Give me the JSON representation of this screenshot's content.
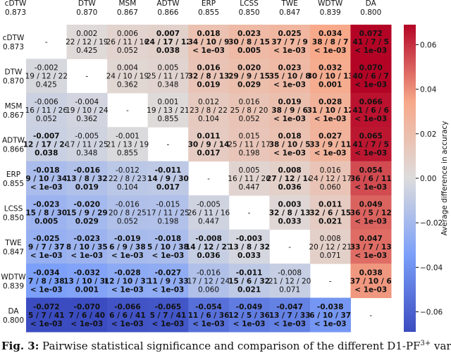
{
  "chart_data": {
    "type": "heatmap",
    "colorbar_label": "Average difference in accuracy",
    "zlim": [
      -0.069,
      0.069
    ],
    "zticks": [
      {
        "value": -0.06,
        "label": "−0.06"
      },
      {
        "value": -0.04,
        "label": "−0.04"
      },
      {
        "value": -0.02,
        "label": "−0.02"
      },
      {
        "value": 0,
        "label": "0.00"
      },
      {
        "value": 0.02,
        "label": "0.02"
      },
      {
        "value": 0.04,
        "label": "0.04"
      },
      {
        "value": 0.06,
        "label": "0.06"
      }
    ],
    "colormap": [
      "#3b4cc0",
      "#7b9ff9",
      "#dddcdc",
      "#f7a889",
      "#b40426"
    ],
    "methods": [
      {
        "name": "cDTW",
        "acc": "0.873"
      },
      {
        "name": "DTW",
        "acc": "0.870"
      },
      {
        "name": "MSM",
        "acc": "0.867"
      },
      {
        "name": "ADTW",
        "acc": "0.866"
      },
      {
        "name": "ERP",
        "acc": "0.855"
      },
      {
        "name": "LCSS",
        "acc": "0.850"
      },
      {
        "name": "TWE",
        "acc": "0.847"
      },
      {
        "name": "WDTW",
        "acc": "0.839"
      },
      {
        "name": "DA",
        "acc": "0.800"
      }
    ],
    "matrix": [
      [
        {
          "diff": "-"
        },
        {
          "value": 0.002,
          "diff": "0.002",
          "wtl": "22 / 12 / 19",
          "p": "0.425",
          "bold": false
        },
        {
          "value": 0.006,
          "diff": "0.006",
          "wtl": "26 / 11 / 16",
          "p": "0.052",
          "bold": false
        },
        {
          "value": 0.007,
          "diff": "0.007",
          "wtl": "24 / 17 / 12",
          "p": "0.038",
          "bold": true
        },
        {
          "value": 0.018,
          "diff": "0.018",
          "wtl": "34 / 10 / 9",
          "p": "< 1e-03",
          "bold": true
        },
        {
          "value": 0.023,
          "diff": "0.023",
          "wtl": "30 / 8 / 15",
          "p": "0.005",
          "bold": true
        },
        {
          "value": 0.025,
          "diff": "0.025",
          "wtl": "37 / 7 / 9",
          "p": "< 1e-03",
          "bold": true
        },
        {
          "value": 0.034,
          "diff": "0.034",
          "wtl": "38 / 8 / 7",
          "p": "< 1e-03",
          "bold": true
        },
        {
          "value": 0.072,
          "diff": "0.072",
          "wtl": "41 / 7 / 5",
          "p": "< 1e-03",
          "bold": true
        }
      ],
      [
        {
          "value": -0.002,
          "diff": "-0.002",
          "wtl": "19 / 12 / 22",
          "p": "0.425",
          "bold": false
        },
        {
          "diff": "-"
        },
        {
          "value": 0.004,
          "diff": "0.004",
          "wtl": "24 / 10 / 19",
          "p": "0.362",
          "bold": false
        },
        {
          "value": 0.005,
          "diff": "0.005",
          "wtl": "25 / 11 / 17",
          "p": "0.348",
          "bold": false
        },
        {
          "value": 0.016,
          "diff": "0.016",
          "wtl": "32 / 8 / 13",
          "p": "0.019",
          "bold": true
        },
        {
          "value": 0.02,
          "diff": "0.020",
          "wtl": "29 / 9 / 15",
          "p": "0.029",
          "bold": true
        },
        {
          "value": 0.023,
          "diff": "0.023",
          "wtl": "35 / 10 / 8",
          "p": "< 1e-03",
          "bold": true
        },
        {
          "value": 0.032,
          "diff": "0.032",
          "wtl": "30 / 10 / 13",
          "p": "0.001",
          "bold": true
        },
        {
          "value": 0.07,
          "diff": "0.070",
          "wtl": "40 / 6 / 7",
          "p": "< 1e-03",
          "bold": true
        }
      ],
      [
        {
          "value": -0.006,
          "diff": "-0.006",
          "wtl": "16 / 11 / 26",
          "p": "0.052",
          "bold": false
        },
        {
          "value": -0.004,
          "diff": "-0.004",
          "wtl": "19 / 10 / 24",
          "p": "0.362",
          "bold": false
        },
        {
          "diff": "-"
        },
        {
          "value": 0.001,
          "diff": "0.001",
          "wtl": "19 / 13 / 21",
          "p": "0.855",
          "bold": false
        },
        {
          "value": 0.012,
          "diff": "0.012",
          "wtl": "23 / 8 / 22",
          "p": "0.104",
          "bold": false
        },
        {
          "value": 0.016,
          "diff": "0.016",
          "wtl": "25 / 8 / 20",
          "p": "0.052",
          "bold": false
        },
        {
          "value": 0.019,
          "diff": "0.019",
          "wtl": "38 / 9 / 6",
          "p": "< 1e-03",
          "bold": true
        },
        {
          "value": 0.028,
          "diff": "0.028",
          "wtl": "31 / 10 / 12",
          "p": "< 1e-03",
          "bold": true
        },
        {
          "value": 0.066,
          "diff": "0.066",
          "wtl": "41 / 6 / 6",
          "p": "< 1e-03",
          "bold": true
        }
      ],
      [
        {
          "value": -0.007,
          "diff": "-0.007",
          "wtl": "12 / 17 / 24",
          "p": "0.038",
          "bold": true
        },
        {
          "value": -0.005,
          "diff": "-0.005",
          "wtl": "17 / 11 / 25",
          "p": "0.348",
          "bold": false
        },
        {
          "value": -0.001,
          "diff": "-0.001",
          "wtl": "21 / 13 / 19",
          "p": "0.855",
          "bold": false
        },
        {
          "diff": "-"
        },
        {
          "value": 0.011,
          "diff": "0.011",
          "wtl": "30 / 9 / 14",
          "p": "0.017",
          "bold": true
        },
        {
          "value": 0.015,
          "diff": "0.015",
          "wtl": "25 / 11 / 17",
          "p": "0.198",
          "bold": false
        },
        {
          "value": 0.018,
          "diff": "0.018",
          "wtl": "38 / 10 / 5",
          "p": "< 1e-03",
          "bold": true
        },
        {
          "value": 0.027,
          "diff": "0.027",
          "wtl": "33 / 9 / 11",
          "p": "< 1e-03",
          "bold": true
        },
        {
          "value": 0.065,
          "diff": "0.065",
          "wtl": "41 / 7 / 5",
          "p": "< 1e-03",
          "bold": true
        }
      ],
      [
        {
          "value": -0.018,
          "diff": "-0.018",
          "wtl": "9 / 10 / 34",
          "p": "< 1e-03",
          "bold": true
        },
        {
          "value": -0.016,
          "diff": "-0.016",
          "wtl": "13 / 8 / 32",
          "p": "0.019",
          "bold": true
        },
        {
          "value": -0.012,
          "diff": "-0.012",
          "wtl": "22 / 8 / 23",
          "p": "0.104",
          "bold": false
        },
        {
          "value": -0.011,
          "diff": "-0.011",
          "wtl": "14 / 9 / 30",
          "p": "0.017",
          "bold": true
        },
        {
          "diff": "-"
        },
        {
          "value": 0.005,
          "diff": "0.005",
          "wtl": "16 / 11 / 26",
          "p": "0.447",
          "bold": false
        },
        {
          "value": 0.008,
          "diff": "0.008",
          "wtl": "27 / 12 / 14",
          "p": "0.036",
          "bold": true
        },
        {
          "value": 0.016,
          "diff": "0.016",
          "wtl": "24 / 12 / 17",
          "p": "0.060",
          "bold": false
        },
        {
          "value": 0.054,
          "diff": "0.054",
          "wtl": "36 / 6 / 11",
          "p": "< 1e-03",
          "bold": true
        }
      ],
      [
        {
          "value": -0.023,
          "diff": "-0.023",
          "wtl": "15 / 8 / 30",
          "p": "0.005",
          "bold": true
        },
        {
          "value": -0.02,
          "diff": "-0.020",
          "wtl": "15 / 9 / 29",
          "p": "0.029",
          "bold": true
        },
        {
          "value": -0.016,
          "diff": "-0.016",
          "wtl": "20 / 8 / 25",
          "p": "0.052",
          "bold": false
        },
        {
          "value": -0.015,
          "diff": "-0.015",
          "wtl": "17 / 11 / 25",
          "p": "0.198",
          "bold": false
        },
        {
          "value": -0.005,
          "diff": "-0.005",
          "wtl": "26 / 11 / 16",
          "p": "0.447",
          "bold": false
        },
        {
          "diff": "-"
        },
        {
          "value": 0.003,
          "diff": "0.003",
          "wtl": "32 / 8 / 13",
          "p": "0.033",
          "bold": true
        },
        {
          "value": 0.011,
          "diff": "0.011",
          "wtl": "32 / 6 / 15",
          "p": "0.021",
          "bold": true
        },
        {
          "value": 0.049,
          "diff": "0.049",
          "wtl": "36 / 5 / 12",
          "p": "< 1e-03",
          "bold": true
        }
      ],
      [
        {
          "value": -0.025,
          "diff": "-0.025",
          "wtl": "9 / 7 / 37",
          "p": "< 1e-03",
          "bold": true
        },
        {
          "value": -0.023,
          "diff": "-0.023",
          "wtl": "8 / 10 / 35",
          "p": "< 1e-03",
          "bold": true
        },
        {
          "value": -0.019,
          "diff": "-0.019",
          "wtl": "6 / 9 / 38",
          "p": "< 1e-03",
          "bold": true
        },
        {
          "value": -0.018,
          "diff": "-0.018",
          "wtl": "5 / 10 / 38",
          "p": "< 1e-03",
          "bold": true
        },
        {
          "value": -0.008,
          "diff": "-0.008",
          "wtl": "14 / 12 / 27",
          "p": "0.036",
          "bold": true
        },
        {
          "value": -0.003,
          "diff": "-0.003",
          "wtl": "13 / 8 / 32",
          "p": "0.033",
          "bold": true
        },
        {
          "diff": "-"
        },
        {
          "value": 0.008,
          "diff": "0.008",
          "wtl": "20 / 12 / 21",
          "p": "0.071",
          "bold": false
        },
        {
          "value": 0.047,
          "diff": "0.047",
          "wtl": "33 / 7 / 13",
          "p": "< 1e-03",
          "bold": true
        }
      ],
      [
        {
          "value": -0.034,
          "diff": "-0.034",
          "wtl": "7 / 8 / 38",
          "p": "< 1e-03",
          "bold": true
        },
        {
          "value": -0.032,
          "diff": "-0.032",
          "wtl": "13 / 10 / 30",
          "p": "0.001",
          "bold": true
        },
        {
          "value": -0.028,
          "diff": "-0.028",
          "wtl": "12 / 10 / 31",
          "p": "< 1e-03",
          "bold": true
        },
        {
          "value": -0.027,
          "diff": "-0.027",
          "wtl": "11 / 9 / 33",
          "p": "< 1e-03",
          "bold": true
        },
        {
          "value": -0.016,
          "diff": "-0.016",
          "wtl": "17 / 12 / 24",
          "p": "0.060",
          "bold": false
        },
        {
          "value": -0.011,
          "diff": "-0.011",
          "wtl": "15 / 6 / 32",
          "p": "0.021",
          "bold": true
        },
        {
          "value": -0.008,
          "diff": "-0.008",
          "wtl": "21 / 12 / 20",
          "p": "0.071",
          "bold": false
        },
        {
          "diff": "-"
        },
        {
          "value": 0.038,
          "diff": "0.038",
          "wtl": "37 / 10 / 6",
          "p": "< 1e-03",
          "bold": true
        }
      ],
      [
        {
          "value": -0.072,
          "diff": "-0.072",
          "wtl": "5 / 7 / 41",
          "p": "< 1e-03",
          "bold": true
        },
        {
          "value": -0.07,
          "diff": "-0.070",
          "wtl": "7 / 6 / 40",
          "p": "< 1e-03",
          "bold": true
        },
        {
          "value": -0.066,
          "diff": "-0.066",
          "wtl": "6 / 6 / 41",
          "p": "< 1e-03",
          "bold": true
        },
        {
          "value": -0.065,
          "diff": "-0.065",
          "wtl": "5 / 7 / 41",
          "p": "< 1e-03",
          "bold": true
        },
        {
          "value": -0.054,
          "diff": "-0.054",
          "wtl": "11 / 6 / 36",
          "p": "< 1e-03",
          "bold": true
        },
        {
          "value": -0.049,
          "diff": "-0.049",
          "wtl": "12 / 5 / 36",
          "p": "< 1e-03",
          "bold": true
        },
        {
          "value": -0.047,
          "diff": "-0.047",
          "wtl": "13 / 7 / 33",
          "p": "< 1e-03",
          "bold": true
        },
        {
          "value": -0.038,
          "diff": "-0.038",
          "wtl": "6 / 10 / 37",
          "p": "< 1e-03",
          "bold": true
        },
        {
          "diff": "-"
        }
      ]
    ]
  },
  "caption": {
    "label": "Fig. 3:",
    "text": "Pairwise statistical significance and comparison of the different D1-PF",
    "sup": "3+",
    "tail": " vari-"
  }
}
